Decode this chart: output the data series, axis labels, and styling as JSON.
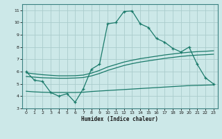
{
  "bg_color": "#cce8e8",
  "grid_color": "#aacccc",
  "line_color": "#1a7a6a",
  "xlabel": "Humidex (Indice chaleur)",
  "xlim": [
    -0.5,
    23.5
  ],
  "ylim": [
    3,
    11.5
  ],
  "xticks": [
    0,
    1,
    2,
    3,
    4,
    5,
    6,
    7,
    8,
    9,
    10,
    11,
    12,
    13,
    14,
    15,
    16,
    17,
    18,
    19,
    20,
    21,
    22,
    23
  ],
  "yticks": [
    3,
    4,
    5,
    6,
    7,
    8,
    9,
    10,
    11
  ],
  "line1_x": [
    0,
    1,
    2,
    3,
    4,
    5,
    6,
    7,
    8,
    9,
    10,
    11,
    12,
    13,
    14,
    15,
    16,
    17,
    18,
    19,
    20,
    21,
    22,
    23
  ],
  "line1_y": [
    6.0,
    5.3,
    5.2,
    4.3,
    4.0,
    4.2,
    3.5,
    4.6,
    6.2,
    6.6,
    9.9,
    10.0,
    10.9,
    10.95,
    9.9,
    9.6,
    8.7,
    8.4,
    7.9,
    7.6,
    8.0,
    6.6,
    5.5,
    5.0
  ],
  "line2_x": [
    0,
    1,
    2,
    3,
    4,
    5,
    6,
    7,
    8,
    9,
    10,
    11,
    12,
    13,
    14,
    15,
    16,
    17,
    18,
    19,
    20,
    21,
    22,
    23
  ],
  "line2_y": [
    5.6,
    5.55,
    5.5,
    5.48,
    5.46,
    5.46,
    5.48,
    5.52,
    5.65,
    5.85,
    6.1,
    6.3,
    6.5,
    6.65,
    6.78,
    6.88,
    6.98,
    7.08,
    7.16,
    7.24,
    7.3,
    7.35,
    7.38,
    7.42
  ],
  "line3_x": [
    0,
    1,
    2,
    3,
    4,
    5,
    6,
    7,
    8,
    9,
    10,
    11,
    12,
    13,
    14,
    15,
    16,
    17,
    18,
    19,
    20,
    21,
    22,
    23
  ],
  "line3_y": [
    5.9,
    5.82,
    5.75,
    5.7,
    5.66,
    5.66,
    5.67,
    5.72,
    5.88,
    6.1,
    6.38,
    6.58,
    6.78,
    6.93,
    7.06,
    7.16,
    7.26,
    7.36,
    7.44,
    7.52,
    7.58,
    7.63,
    7.66,
    7.7
  ],
  "line4_x": [
    0,
    1,
    2,
    3,
    4,
    5,
    6,
    7,
    8,
    9,
    10,
    11,
    12,
    13,
    14,
    15,
    16,
    17,
    18,
    19,
    20,
    21,
    22,
    23
  ],
  "line4_y": [
    4.4,
    4.35,
    4.32,
    4.3,
    4.3,
    4.3,
    4.3,
    4.32,
    4.38,
    4.42,
    4.46,
    4.5,
    4.54,
    4.58,
    4.62,
    4.66,
    4.7,
    4.74,
    4.78,
    4.82,
    4.86,
    4.88,
    4.9,
    4.92
  ]
}
